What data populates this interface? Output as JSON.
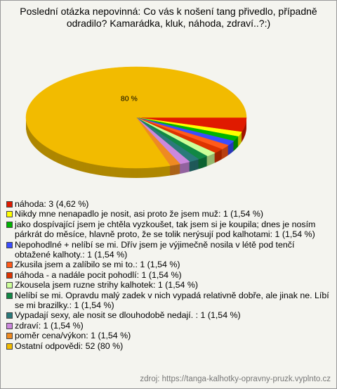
{
  "chart_data": {
    "type": "pie",
    "title": [
      "Poslední otázka nepovinná: Co vás k nošení tang přivedlo, případně",
      "odradilo? Kamarádka, kluk, náhoda, zdraví..?:)"
    ],
    "categories": [
      "náhoda: 3 (4,62 %)",
      "Nikdy mne nenapadlo je nosit, asi proto že jsem muž: 1 (1,54 %)",
      "jako dospívající jsem je chtěla vyzkoušet, tak jsem si je koupila; dnes je nosím párkrát do měsíce, hlavně proto, že se tolik nerýsují pod kalhotami: 1 (1,54 %)",
      "Nepohodlné + nelíbí se mi. Dřív jsem je výjimečně nosila v létě pod tenčí obtažené kalhoty.: 1 (1,54 %)",
      "Zkusila jsem a zalíbilo se mi to.: 1 (1,54 %)",
      "náhoda - a nadále pocit pohodlí: 1 (1,54 %)",
      "Zkousela jsem ruzne strihy kalhotek: 1 (1,54 %)",
      "Nelíbí se mi. Opravdu malý zadek v nich vypadá relativně dobře,  ale jinak ne. Líbí se mi brazilky.: 1 (1,54 %)",
      "Vypadají sexy, ale nosit se dlouhodobě nedají. : 1 (1,54 %)",
      "zdraví: 1 (1,54 %)",
      "poměr cena/výkon: 1 (1,54 %)",
      "Ostatní odpovědi: 52 (80 %)"
    ],
    "values": [
      4.62,
      1.54,
      1.54,
      1.54,
      1.54,
      1.54,
      1.54,
      1.54,
      1.54,
      1.54,
      1.54,
      80
    ],
    "value_labels": [
      null,
      null,
      null,
      null,
      null,
      null,
      null,
      null,
      null,
      null,
      null,
      "80 %"
    ],
    "colors": [
      "#e01a00",
      "#ffff00",
      "#00b400",
      "#3a4dff",
      "#ff5a1a",
      "#dd3300",
      "#ccff99",
      "#118844",
      "#2a7a7a",
      "#cc88dd",
      "#ee8a22",
      "#f2bb00"
    ],
    "source": "zdroj: https://tanga-kalhotky-opravny-pruzk.vyplnto.cz"
  }
}
